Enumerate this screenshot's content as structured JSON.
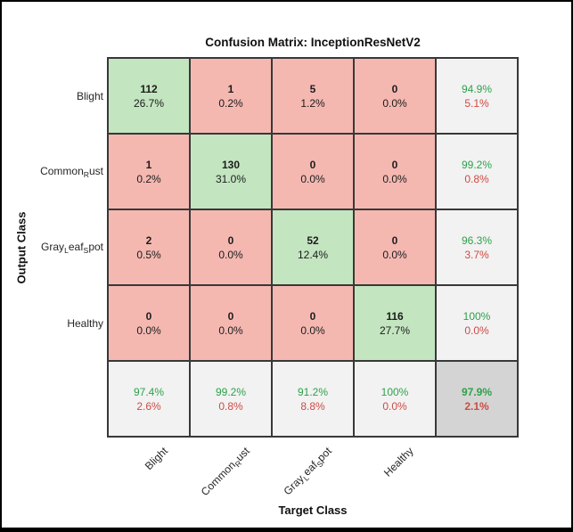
{
  "chart_data": {
    "type": "heatmap",
    "subtype": "confusion-matrix",
    "title": "Confusion Matrix: InceptionResNetV2",
    "xlabel": "Target Class",
    "ylabel": "Output Class",
    "grid": true,
    "legend_position": "none",
    "classes": [
      {
        "name": "Blight",
        "parts": [
          [
            "Blight",
            0
          ]
        ]
      },
      {
        "name": "CommonRust",
        "parts": [
          [
            "Common",
            0
          ],
          [
            "R",
            1
          ],
          [
            "ust",
            0
          ]
        ]
      },
      {
        "name": "GrayLeafSpot",
        "parts": [
          [
            "Gray",
            0
          ],
          [
            "L",
            1
          ],
          [
            "eaf",
            0
          ],
          [
            "S",
            1
          ],
          [
            "pot",
            0
          ]
        ]
      },
      {
        "name": "Healthy",
        "parts": [
          [
            "Healthy",
            0
          ]
        ]
      }
    ],
    "values": [
      [
        112,
        1,
        5,
        0
      ],
      [
        1,
        130,
        0,
        0
      ],
      [
        2,
        0,
        52,
        0
      ],
      [
        0,
        0,
        0,
        116
      ]
    ],
    "cell_pct": [
      [
        "26.7%",
        "0.2%",
        "1.2%",
        "0.0%"
      ],
      [
        "0.2%",
        "31.0%",
        "0.0%",
        "0.0%"
      ],
      [
        "0.5%",
        "0.0%",
        "12.4%",
        "0.0%"
      ],
      [
        "0.0%",
        "0.0%",
        "0.0%",
        "27.7%"
      ]
    ],
    "row_summary": [
      {
        "green": "94.9%",
        "red": "5.1%"
      },
      {
        "green": "99.2%",
        "red": "0.8%"
      },
      {
        "green": "96.3%",
        "red": "3.7%"
      },
      {
        "green": "100%",
        "red": "0.0%"
      }
    ],
    "col_summary": [
      {
        "green": "97.4%",
        "red": "2.6%"
      },
      {
        "green": "99.2%",
        "red": "0.8%"
      },
      {
        "green": "91.2%",
        "red": "8.8%"
      },
      {
        "green": "100%",
        "red": "0.0%"
      }
    ],
    "overall": {
      "green": "97.9%",
      "red": "2.1%"
    },
    "colors": {
      "correct_bg": "#c3e5c0",
      "incorrect_bg": "#f4b8b1",
      "summary_bg": "#f2f2f2",
      "overall_bg": "#d4d4d4",
      "grid_line": "#383838",
      "green_text": "#2ca24a",
      "red_text": "#ce4a44",
      "dark_text": "#1c1c1c"
    }
  }
}
